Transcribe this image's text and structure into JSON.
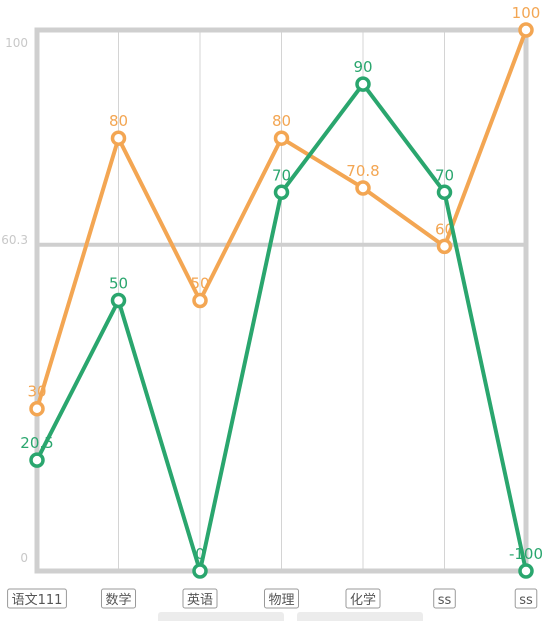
{
  "chart_data": {
    "type": "line",
    "categories": [
      "语文111",
      "数学",
      "英语",
      "物理",
      "化学",
      "ss",
      "ss"
    ],
    "series": [
      {
        "color": "#f3a653",
        "values": [
          30,
          80,
          50,
          80,
          70.8,
          60,
          100
        ],
        "labels": [
          "30",
          "80",
          "50",
          "80",
          "70.8",
          "60",
          "100"
        ]
      },
      {
        "color": "#2aa66e",
        "values": [
          20.5,
          50,
          0,
          70,
          90,
          70,
          -100
        ],
        "labels": [
          "20.5",
          "50",
          "0",
          "70",
          "90",
          "70",
          "-100"
        ]
      }
    ],
    "y_ticks": [
      {
        "value": 100,
        "label": "100"
      },
      {
        "value": 60.3,
        "label": "60.3"
      },
      {
        "value": 0,
        "label": "0"
      }
    ],
    "ylim": [
      0,
      100
    ],
    "grid": true,
    "legend": "none"
  }
}
